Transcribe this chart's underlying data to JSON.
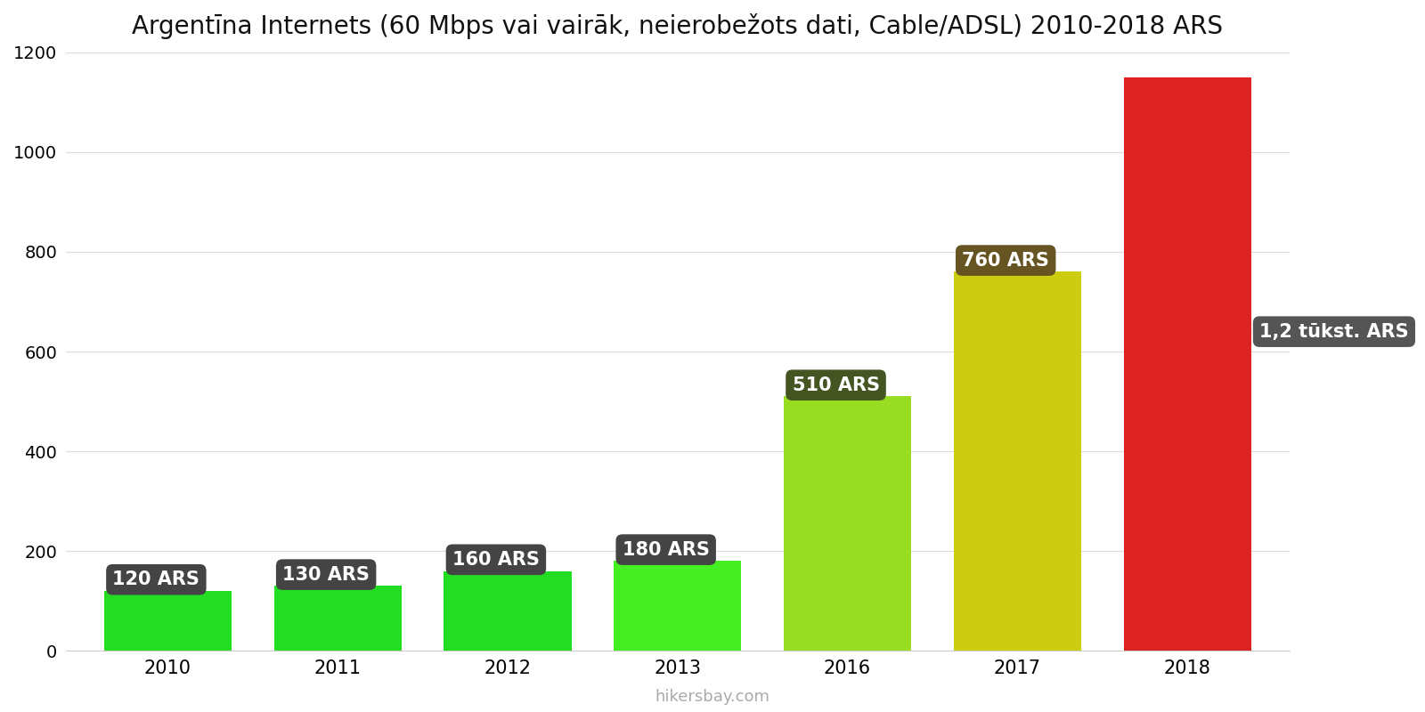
{
  "title": "Argentīna Internets (60 Mbps vai vairāk, neierobežots dati, Cable/ADSL) 2010-2018 ARS",
  "years": [
    2010,
    2011,
    2012,
    2013,
    2016,
    2017,
    2018
  ],
  "values": [
    120,
    130,
    160,
    180,
    510,
    760,
    1150
  ],
  "bar_colors": [
    "#22dd22",
    "#22dd22",
    "#22dd22",
    "#44ee22",
    "#99dd22",
    "#cccc11",
    "#dd2222"
  ],
  "label_texts": [
    "120 ARS",
    "130 ARS",
    "160 ARS",
    "180 ARS",
    "510 ARS",
    "760 ARS",
    "1,2 tūkst. ARS"
  ],
  "label_bg_dark": [
    "#444444",
    "#444444",
    "#444444",
    "#444444",
    "#445522",
    "#665522",
    "#555555"
  ],
  "ylim": [
    0,
    1200
  ],
  "yticks": [
    0,
    200,
    400,
    600,
    800,
    1000,
    1200
  ],
  "background_color": "#ffffff",
  "watermark": "hikersbay.com",
  "title_fontsize": 20
}
